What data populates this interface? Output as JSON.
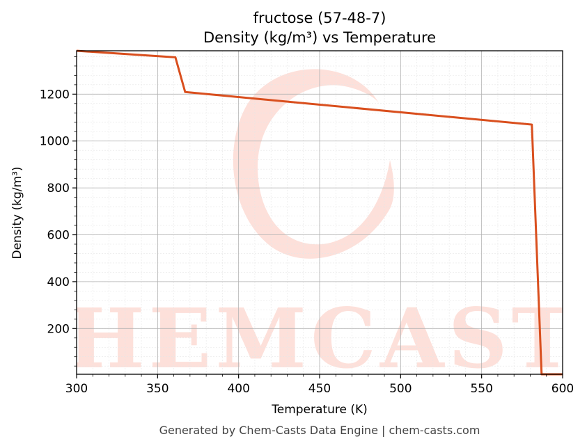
{
  "chart_data": {
    "type": "line",
    "title": "fructose (57-48-7)",
    "subtitle": "Density (kg/m³) vs Temperature",
    "xlabel": "Temperature (K)",
    "ylabel": "Density (kg/m³)",
    "xlim": [
      300,
      600
    ],
    "ylim": [
      5,
      1385
    ],
    "xticks": [
      300,
      350,
      400,
      450,
      500,
      550,
      600
    ],
    "yticks": [
      200,
      400,
      600,
      800,
      1000,
      1200
    ],
    "grid": true,
    "series": [
      {
        "color": "#d94f1e",
        "x": [
          300,
          361,
          367,
          581,
          587,
          600
        ],
        "y": [
          1385,
          1357,
          1209,
          1070,
          5,
          5
        ]
      }
    ]
  },
  "watermark": {
    "text": "CHEMCASTS",
    "color": "#fde0da"
  },
  "footer": "Generated by Chem-Casts Data Engine | chem-casts.com"
}
